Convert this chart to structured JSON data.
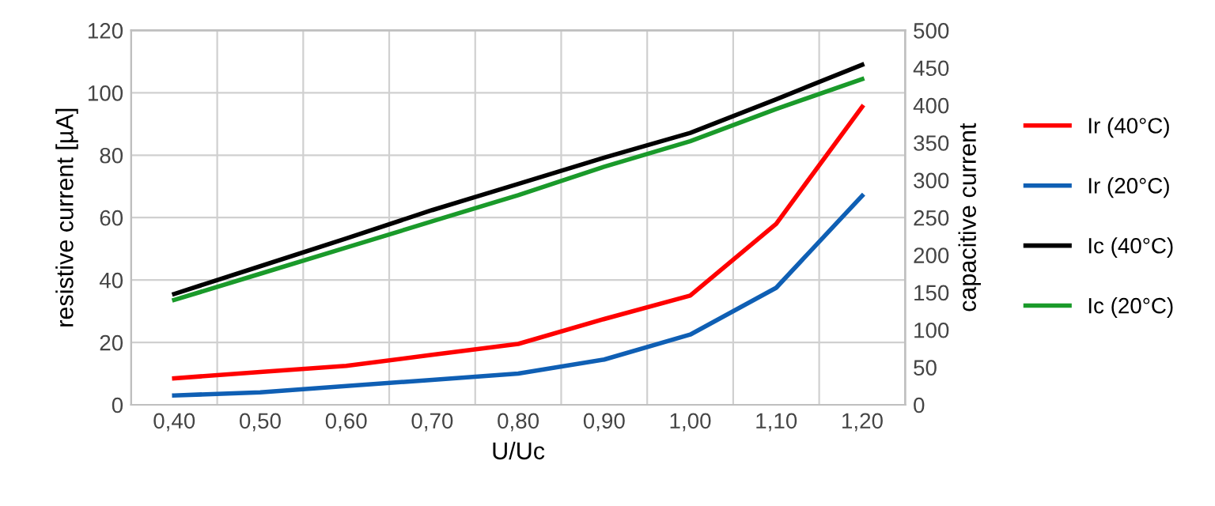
{
  "chart_data": {
    "type": "line",
    "xlabel": "U/Uc",
    "ylabel": "resistive current [µA]",
    "y2label": "capacitive current",
    "categories": [
      "0,40",
      "0,50",
      "0,60",
      "0,70",
      "0,80",
      "0,90",
      "1,00",
      "1,10",
      "1,20"
    ],
    "series": [
      {
        "name": "Ir (40°C)",
        "color": "#ff0000",
        "values": [
          8.5,
          10.5,
          12.5,
          16,
          19.5,
          27.5,
          35,
          58,
          95.5
        ]
      },
      {
        "name": "Ir (20°C)",
        "color": "#0f5fb4",
        "values": [
          3,
          4,
          6,
          8,
          10,
          14.5,
          22.5,
          37.5,
          67
        ]
      },
      {
        "name": "Ic (40°C)",
        "color": "#000000",
        "axis": "y2",
        "values": [
          148,
          185,
          222,
          260,
          295,
          330,
          363,
          408,
          454
        ]
      },
      {
        "name": "Ic (20°C)",
        "color": "#1a9a2a",
        "axis": "y2",
        "values": [
          140,
          175,
          210,
          245,
          280,
          318,
          352,
          395,
          435
        ]
      }
    ],
    "ylim": [
      0,
      120
    ],
    "yticks": [
      0,
      20,
      40,
      60,
      80,
      100,
      120
    ],
    "y2lim": [
      0,
      500
    ],
    "y2ticks": [
      0,
      50,
      100,
      150,
      200,
      250,
      300,
      350,
      400,
      450,
      500
    ],
    "grid": true,
    "legend": "right",
    "marker": "none",
    "line_style": "solid"
  }
}
